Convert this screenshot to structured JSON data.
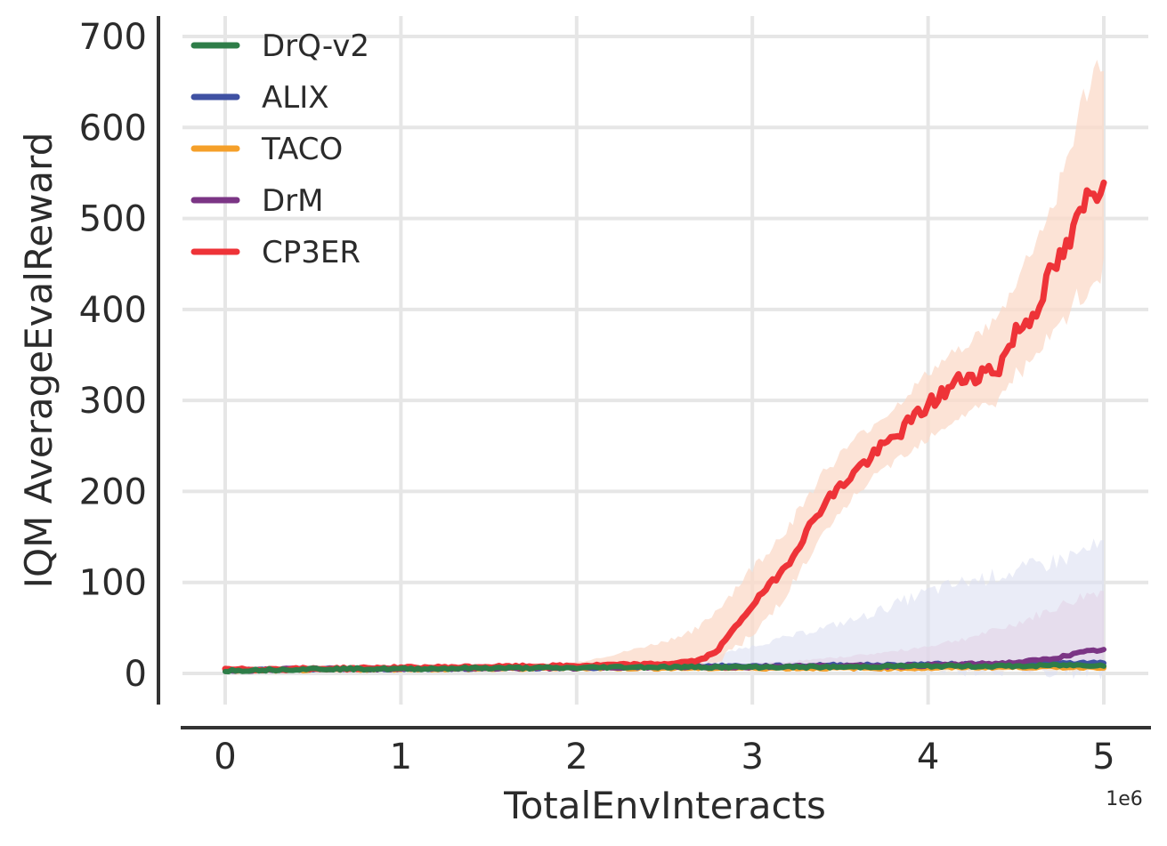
{
  "chart_data": {
    "type": "line",
    "xlabel": "TotalEnvInteracts",
    "ylabel": "IQM AverageEvalReward",
    "x_offset_label": "1e6",
    "xlim": [
      0,
      5
    ],
    "ylim": [
      -35,
      710
    ],
    "x_ticks": [
      "0",
      "1",
      "2",
      "3",
      "4",
      "5"
    ],
    "x_tick_values": [
      0,
      1,
      2,
      3,
      4,
      5
    ],
    "y_ticks": [
      "0",
      "100",
      "200",
      "300",
      "400",
      "500",
      "600",
      "700"
    ],
    "y_tick_values": [
      0,
      100,
      200,
      300,
      400,
      500,
      600,
      700
    ],
    "grid": true,
    "legend_position": "top-left",
    "x": [
      0,
      0.5,
      1.0,
      1.5,
      2.0,
      2.2,
      2.5,
      2.7,
      2.8,
      3.0,
      3.2,
      3.4,
      3.6,
      3.8,
      4.0,
      4.2,
      4.4,
      4.5,
      4.6,
      4.7,
      4.8,
      4.9,
      5.0
    ],
    "series": [
      {
        "name": "DrQ-v2",
        "color": "#2e7d48",
        "values": [
          3,
          5,
          5,
          6,
          6,
          7,
          7,
          7,
          7,
          7,
          7,
          7,
          7,
          8,
          8,
          8,
          8,
          8,
          8,
          9,
          9,
          9,
          9
        ],
        "lower": [
          2,
          3,
          3,
          4,
          4,
          5,
          5,
          5,
          5,
          5,
          5,
          5,
          5,
          5,
          5,
          5,
          5,
          5,
          5,
          5,
          5,
          5,
          5
        ],
        "upper": [
          5,
          7,
          7,
          8,
          8,
          9,
          9,
          9,
          9,
          9,
          10,
          10,
          10,
          11,
          11,
          11,
          12,
          12,
          12,
          12,
          13,
          13,
          13
        ]
      },
      {
        "name": "ALIX",
        "color": "#3f51a3",
        "values": [
          3,
          5,
          5,
          6,
          6,
          7,
          7,
          8,
          8,
          8,
          8,
          9,
          9,
          9,
          10,
          10,
          10,
          10,
          11,
          11,
          11,
          11,
          12
        ],
        "lower": [
          2,
          3,
          3,
          4,
          4,
          5,
          5,
          5,
          5,
          5,
          5,
          5,
          5,
          5,
          5,
          5,
          5,
          5,
          5,
          5,
          5,
          5,
          5
        ],
        "upper": [
          5,
          7,
          7,
          8,
          8,
          10,
          12,
          15,
          20,
          30,
          40,
          50,
          60,
          75,
          90,
          100,
          108,
          112,
          118,
          122,
          128,
          135,
          140
        ]
      },
      {
        "name": "TACO",
        "color": "#f5a02a",
        "values": [
          3,
          4,
          5,
          5,
          6,
          6,
          6,
          6,
          6,
          6,
          6,
          6,
          6,
          6,
          6,
          7,
          7,
          7,
          7,
          7,
          7,
          7,
          7
        ],
        "lower": [
          1,
          2,
          3,
          3,
          3,
          3,
          3,
          3,
          3,
          3,
          3,
          3,
          3,
          3,
          3,
          3,
          3,
          3,
          3,
          3,
          3,
          3,
          3
        ],
        "upper": [
          5,
          6,
          7,
          7,
          8,
          8,
          8,
          8,
          8,
          8,
          8,
          8,
          9,
          9,
          9,
          9,
          9,
          9,
          10,
          10,
          10,
          10,
          10
        ]
      },
      {
        "name": "DrM",
        "color": "#7b3585",
        "values": [
          3,
          5,
          5,
          6,
          6,
          7,
          7,
          7,
          7,
          7,
          8,
          8,
          8,
          8,
          9,
          10,
          11,
          12,
          14,
          16,
          20,
          24,
          26
        ],
        "lower": [
          2,
          3,
          3,
          4,
          4,
          5,
          5,
          5,
          5,
          5,
          5,
          5,
          5,
          5,
          5,
          5,
          5,
          5,
          5,
          6,
          7,
          8,
          9
        ],
        "upper": [
          5,
          7,
          7,
          8,
          8,
          9,
          9,
          10,
          10,
          11,
          13,
          16,
          20,
          24,
          30,
          38,
          48,
          55,
          62,
          70,
          78,
          86,
          92
        ]
      },
      {
        "name": "CP3ER",
        "color": "#ee3338",
        "band_color": "#fbd9c8",
        "values": [
          4,
          5,
          6,
          7,
          8,
          9,
          10,
          14,
          25,
          75,
          120,
          185,
          225,
          258,
          295,
          325,
          335,
          375,
          395,
          440,
          470,
          520,
          540
        ],
        "lower": [
          2,
          3,
          4,
          5,
          6,
          7,
          8,
          10,
          15,
          40,
          90,
          150,
          200,
          232,
          260,
          285,
          300,
          330,
          340,
          370,
          395,
          420,
          440
        ],
        "upper": [
          6,
          7,
          8,
          10,
          12,
          20,
          35,
          50,
          70,
          115,
          160,
          220,
          260,
          290,
          330,
          360,
          390,
          430,
          470,
          510,
          570,
          640,
          680
        ]
      }
    ]
  }
}
